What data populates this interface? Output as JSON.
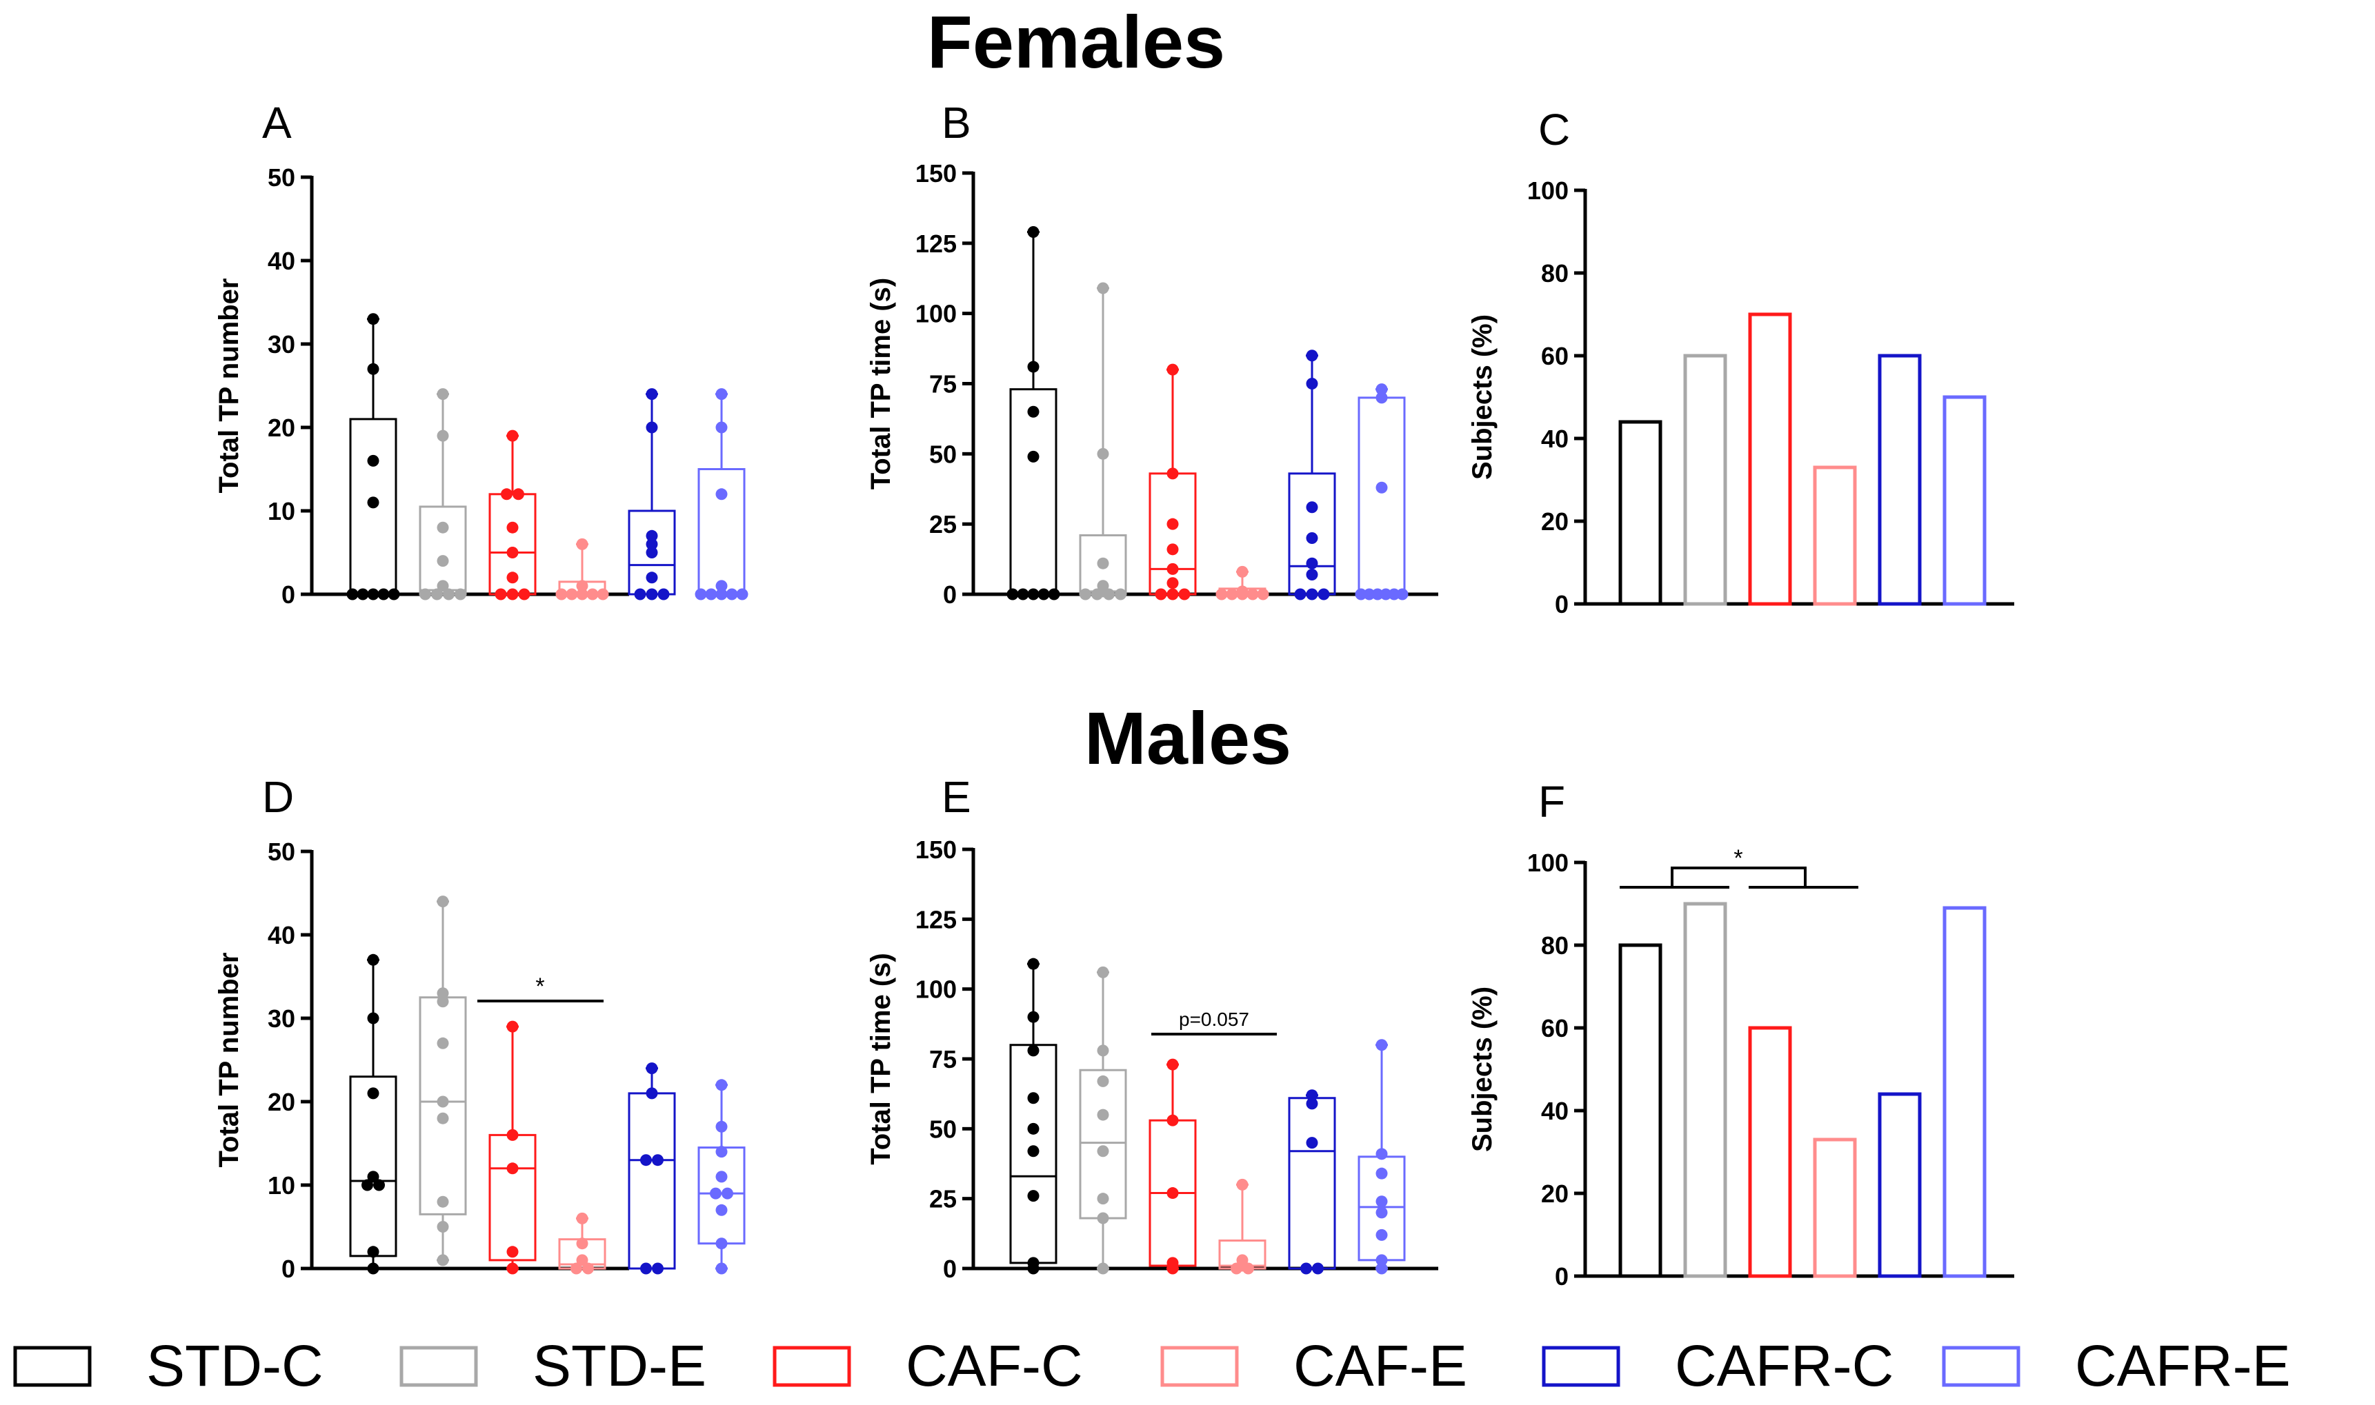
{
  "titles": {
    "females": "Females",
    "males": "Males"
  },
  "groups": [
    {
      "name": "STD-C",
      "color": "#000000"
    },
    {
      "name": "STD-E",
      "color": "#a8a8a8"
    },
    {
      "name": "CAF-C",
      "color": "#ff1a1a"
    },
    {
      "name": "CAF-E",
      "color": "#ff8c8c"
    },
    {
      "name": "CAFR-C",
      "color": "#1414c8"
    },
    {
      "name": "CAFR-E",
      "color": "#6a6aff"
    }
  ],
  "chart_data": [
    {
      "panel": "A",
      "type": "box",
      "ylabel": "Total TP number",
      "ylim": [
        0,
        50
      ],
      "yticks": [
        "0",
        "10",
        "20",
        "30",
        "40",
        "50"
      ],
      "series": [
        {
          "group": "STD-C",
          "q1": 0,
          "median": 0,
          "q3": 21,
          "min": 0,
          "max": 33,
          "points": [
            0,
            0,
            0,
            0,
            0,
            11,
            16,
            27,
            33
          ]
        },
        {
          "group": "STD-E",
          "q1": 0,
          "median": 0.5,
          "q3": 10.5,
          "min": 0,
          "max": 24,
          "points": [
            0,
            0,
            0,
            0,
            1,
            4,
            8,
            19,
            24
          ]
        },
        {
          "group": "CAF-C",
          "q1": 0,
          "median": 5,
          "q3": 12,
          "min": 0,
          "max": 19,
          "points": [
            0,
            0,
            0,
            2,
            5,
            8,
            12,
            12,
            19
          ]
        },
        {
          "group": "CAF-E",
          "q1": 0,
          "median": 0,
          "q3": 1.5,
          "min": 0,
          "max": 6,
          "points": [
            0,
            0,
            0,
            0,
            0,
            1,
            6
          ]
        },
        {
          "group": "CAFR-C",
          "q1": 0,
          "median": 3.5,
          "q3": 10,
          "min": 0,
          "max": 24,
          "points": [
            0,
            0,
            0,
            2,
            5,
            6,
            7,
            20,
            24
          ]
        },
        {
          "group": "CAFR-E",
          "q1": 0,
          "median": 0,
          "q3": 15,
          "min": 0,
          "max": 24,
          "points": [
            0,
            0,
            0,
            0,
            0,
            1,
            12,
            20,
            24
          ]
        }
      ]
    },
    {
      "panel": "B",
      "type": "box",
      "ylabel": "Total TP time (s)",
      "ylim": [
        0,
        150
      ],
      "yticks": [
        "0",
        "25",
        "50",
        "75",
        "100",
        "125",
        "150"
      ],
      "series": [
        {
          "group": "STD-C",
          "q1": 0,
          "median": 0,
          "q3": 73,
          "min": 0,
          "max": 129,
          "points": [
            0,
            0,
            0,
            0,
            0,
            49,
            65,
            81,
            129
          ]
        },
        {
          "group": "STD-E",
          "q1": 0,
          "median": 1,
          "q3": 21,
          "min": 0,
          "max": 109,
          "points": [
            0,
            0,
            0,
            0,
            1,
            3,
            11,
            50,
            109
          ]
        },
        {
          "group": "CAF-C",
          "q1": 0,
          "median": 9,
          "q3": 43,
          "min": 0,
          "max": 80,
          "points": [
            0,
            0,
            0,
            4,
            9,
            16,
            25,
            43,
            80
          ]
        },
        {
          "group": "CAF-E",
          "q1": 0,
          "median": 0,
          "q3": 2,
          "min": 0,
          "max": 8,
          "points": [
            0,
            0,
            0,
            0,
            0,
            1,
            8
          ]
        },
        {
          "group": "CAFR-C",
          "q1": 0,
          "median": 10,
          "q3": 43,
          "min": 0,
          "max": 85,
          "points": [
            0,
            0,
            0,
            7,
            11,
            20,
            31,
            75,
            85
          ]
        },
        {
          "group": "CAFR-E",
          "q1": 0,
          "median": 0,
          "q3": 70,
          "min": 0,
          "max": 73,
          "points": [
            0,
            0,
            0,
            0,
            0,
            0,
            38,
            70,
            73
          ]
        }
      ]
    },
    {
      "panel": "C",
      "type": "bar",
      "ylabel": "Subjects (%)",
      "ylim": [
        0,
        100
      ],
      "yticks": [
        "0",
        "20",
        "40",
        "60",
        "80",
        "100"
      ],
      "categories": [
        "STD-C",
        "STD-E",
        "CAF-C",
        "CAF-E",
        "CAFR-C",
        "CAFR-E"
      ],
      "values": [
        44,
        60,
        70,
        33,
        60,
        50
      ]
    },
    {
      "panel": "D",
      "type": "box",
      "ylabel": "Total TP number",
      "ylim": [
        0,
        50
      ],
      "yticks": [
        "0",
        "10",
        "20",
        "30",
        "40",
        "50"
      ],
      "series": [
        {
          "group": "STD-C",
          "q1": 1.5,
          "median": 10.5,
          "q3": 23,
          "min": 0,
          "max": 37,
          "points": [
            0,
            2,
            10,
            10,
            11,
            21,
            30,
            37
          ]
        },
        {
          "group": "STD-E",
          "q1": 6.5,
          "median": 20,
          "q3": 32.5,
          "min": 1,
          "max": 44,
          "points": [
            1,
            5,
            8,
            18,
            20,
            27,
            32,
            33,
            44
          ]
        },
        {
          "group": "CAF-C",
          "q1": 1,
          "median": 12,
          "q3": 16,
          "min": 0,
          "max": 29,
          "points": [
            0,
            2,
            12,
            16,
            29
          ]
        },
        {
          "group": "CAF-E",
          "q1": 0,
          "median": 0.5,
          "q3": 3.5,
          "min": 0,
          "max": 6,
          "points": [
            0,
            0,
            1,
            3,
            6
          ]
        },
        {
          "group": "CAFR-C",
          "q1": 0,
          "median": 13,
          "q3": 21,
          "min": 0,
          "max": 24,
          "points": [
            0,
            0,
            13,
            13,
            21,
            24
          ]
        },
        {
          "group": "CAFR-E",
          "q1": 3,
          "median": 9,
          "q3": 14.5,
          "min": 0,
          "max": 22,
          "points": [
            0,
            3,
            7,
            9,
            9,
            11,
            14,
            17,
            22
          ]
        }
      ]
    },
    {
      "panel": "E",
      "type": "box",
      "ylabel": "Total TP time (s)",
      "ylim": [
        0,
        150
      ],
      "yticks": [
        "0",
        "25",
        "50",
        "75",
        "100",
        "125",
        "150"
      ],
      "series": [
        {
          "group": "STD-C",
          "q1": 2,
          "median": 33,
          "q3": 80,
          "min": 0,
          "max": 109,
          "points": [
            0,
            2,
            26,
            42,
            50,
            61,
            78,
            90,
            109
          ]
        },
        {
          "group": "STD-E",
          "q1": 18,
          "median": 45,
          "q3": 71,
          "min": 0,
          "max": 106,
          "points": [
            0,
            18,
            25,
            42,
            55,
            67,
            78,
            106
          ]
        },
        {
          "group": "CAF-C",
          "q1": 1,
          "median": 27,
          "q3": 53,
          "min": 0,
          "max": 73,
          "points": [
            0,
            2,
            27,
            53,
            73
          ]
        },
        {
          "group": "CAF-E",
          "q1": 0,
          "median": 1,
          "q3": 10,
          "min": 0,
          "max": 30,
          "points": [
            0,
            0,
            1,
            3,
            30
          ]
        },
        {
          "group": "CAFR-C",
          "q1": 0,
          "median": 42,
          "q3": 61,
          "min": 0,
          "max": 62,
          "points": [
            0,
            0,
            45,
            59,
            62
          ]
        },
        {
          "group": "CAFR-E",
          "q1": 3,
          "median": 22,
          "q3": 40,
          "min": 0,
          "max": 80,
          "points": [
            0,
            3,
            12,
            20,
            24,
            34,
            41,
            80
          ]
        }
      ]
    },
    {
      "panel": "F",
      "type": "bar",
      "ylabel": "Subjects (%)",
      "ylim": [
        0,
        100
      ],
      "yticks": [
        "0",
        "20",
        "40",
        "60",
        "80",
        "100"
      ],
      "categories": [
        "STD-C",
        "STD-E",
        "CAF-C",
        "CAF-E",
        "CAFR-C",
        "CAFR-E"
      ],
      "values": [
        80,
        90,
        60,
        33,
        44,
        89
      ]
    }
  ],
  "annotations": {
    "D_star": "*",
    "E_pvalue": "p=0.057",
    "F_star": "*"
  }
}
